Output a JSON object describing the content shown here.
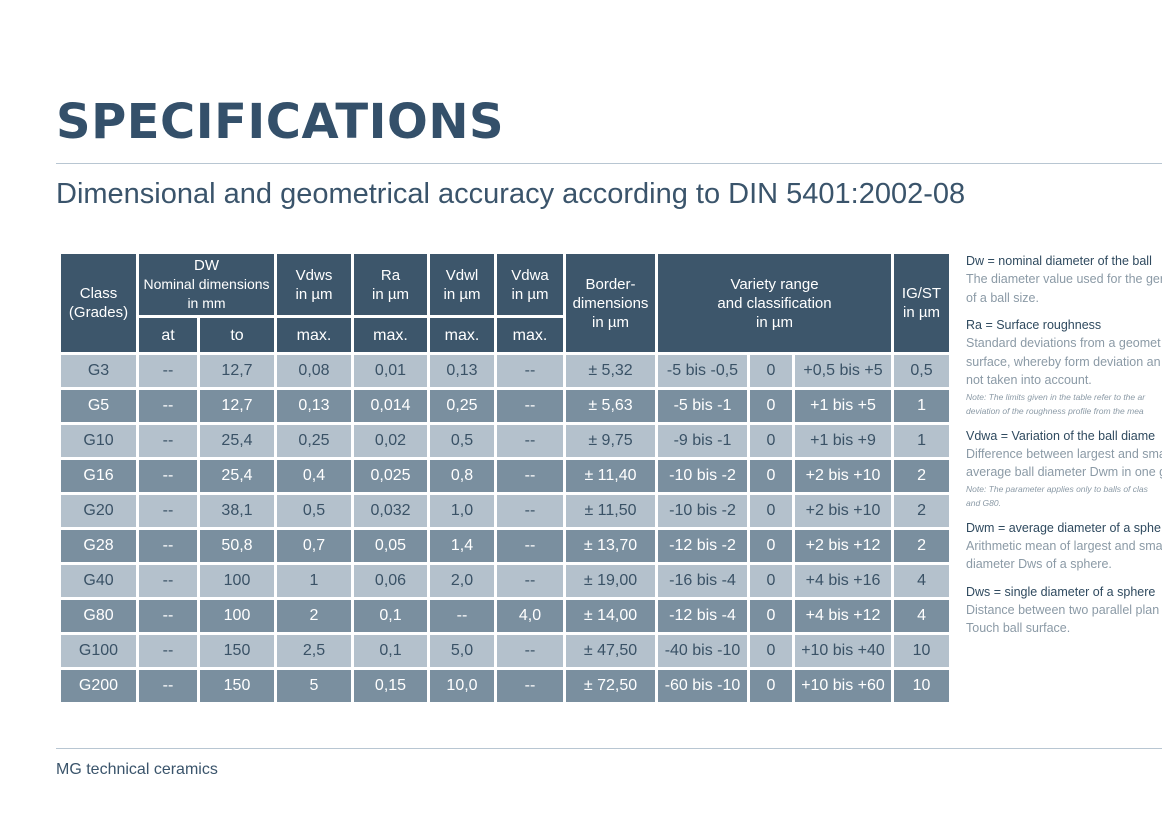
{
  "page": {
    "title": "SPECIFICATIONS",
    "subtitle": "Dimensional and geometrical accuracy according to DIN 5401:2002-08",
    "footer": "MG technical ceramics"
  },
  "table": {
    "headers": {
      "class_l1": "Class",
      "class_l2": "(Grades)",
      "dw_l1": "DW",
      "dw_l2": "Nominal dimensions",
      "dw_l3": "in mm",
      "vdws_l1": "Vdws",
      "vdws_l2": "in µm",
      "ra_l1": "Ra",
      "ra_l2": "in µm",
      "vdwl_l1": "Vdwl",
      "vdwl_l2": "in µm",
      "vdwa_l1": "Vdwa",
      "vdwa_l2": "in µm",
      "border_l1": "Border-",
      "border_l2": "dimensions",
      "border_l3": "in µm",
      "variety_l1": "Variety range",
      "variety_l2": "and classification",
      "variety_l3": "in µm",
      "igst_l1": "IG/ST",
      "igst_l2": "in µm",
      "at": "at",
      "to": "to",
      "max": "max."
    },
    "rows": [
      [
        "G3",
        "--",
        "12,7",
        "0,08",
        "0,01",
        "0,13",
        "--",
        "± 5,32",
        "-5 bis -0,5",
        "0",
        "+0,5 bis +5",
        "0,5"
      ],
      [
        "G5",
        "--",
        "12,7",
        "0,13",
        "0,014",
        "0,25",
        "--",
        "± 5,63",
        "-5 bis -1",
        "0",
        "+1 bis +5",
        "1"
      ],
      [
        "G10",
        "--",
        "25,4",
        "0,25",
        "0,02",
        "0,5",
        "--",
        "± 9,75",
        "-9 bis -1",
        "0",
        "+1 bis +9",
        "1"
      ],
      [
        "G16",
        "--",
        "25,4",
        "0,4",
        "0,025",
        "0,8",
        "--",
        "± 11,40",
        "-10 bis -2",
        "0",
        "+2 bis +10",
        "2"
      ],
      [
        "G20",
        "--",
        "38,1",
        "0,5",
        "0,032",
        "1,0",
        "--",
        "± 11,50",
        "-10 bis -2",
        "0",
        "+2 bis +10",
        "2"
      ],
      [
        "G28",
        "--",
        "50,8",
        "0,7",
        "0,05",
        "1,4",
        "--",
        "± 13,70",
        "-12 bis -2",
        "0",
        "+2 bis +12",
        "2"
      ],
      [
        "G40",
        "--",
        "100",
        "1",
        "0,06",
        "2,0",
        "--",
        "± 19,00",
        "-16 bis -4",
        "0",
        "+4 bis +16",
        "4"
      ],
      [
        "G80",
        "--",
        "100",
        "2",
        "0,1",
        "--",
        "4,0",
        "± 14,00",
        "-12 bis -4",
        "0",
        "+4 bis +12",
        "4"
      ],
      [
        "G100",
        "--",
        "150",
        "2,5",
        "0,1",
        "5,0",
        "--",
        "± 47,50",
        "-40 bis -10",
        "0",
        "+10 bis +40",
        "10"
      ],
      [
        "G200",
        "--",
        "150",
        "5",
        "0,15",
        "10,0",
        "--",
        "± 72,50",
        "-60 bis -10",
        "0",
        "+10 bis +60",
        "10"
      ]
    ]
  },
  "legend": {
    "dw": {
      "term": "Dw = nominal diameter of the ball",
      "desc": [
        "The diameter value used for the ger",
        "of a ball size."
      ]
    },
    "ra": {
      "term": "Ra = Surface roughness",
      "desc": [
        "Standard deviations from a geomet",
        "surface, whereby form deviation an",
        "not taken into account."
      ],
      "note": [
        "Note: The limits given in the table refer to the ar",
        "deviation of the roughness profile from the mea"
      ]
    },
    "vdwa": {
      "term": "Vdwa = Variation of the ball diame",
      "desc": [
        "Difference between largest and sma",
        "average ball diameter Dwm in one g"
      ],
      "note": [
        "Note: The parameter applies only to balls of clas",
        "and G80."
      ]
    },
    "dwm": {
      "term": "Dwm = average diameter of a sphe",
      "desc": [
        "Arithmetic mean of largest and sma",
        "diameter Dws of a sphere."
      ]
    },
    "dws": {
      "term": "Dws = single diameter of a sphere",
      "desc": [
        "Distance between two parallel plan",
        "Touch ball surface."
      ]
    }
  }
}
